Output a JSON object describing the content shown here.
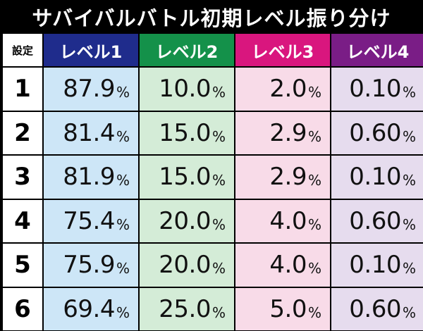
{
  "title": "サバイバルバトル初期レベル振り分け",
  "header": {
    "setting_label": "設定",
    "levels": [
      "レベル1",
      "レベル2",
      "レベル3",
      "レベル4"
    ],
    "level_colors": [
      "#1f2c8c",
      "#14914a",
      "#d9167e",
      "#7a1d86"
    ]
  },
  "unit": "%",
  "rows": [
    {
      "setting": "1",
      "values": [
        "87.9",
        "10.0",
        "2.0",
        "0.10"
      ]
    },
    {
      "setting": "2",
      "values": [
        "81.4",
        "15.0",
        "2.9",
        "0.60"
      ]
    },
    {
      "setting": "3",
      "values": [
        "81.9",
        "15.0",
        "2.9",
        "0.10"
      ]
    },
    {
      "setting": "4",
      "values": [
        "75.4",
        "20.0",
        "4.0",
        "0.60"
      ]
    },
    {
      "setting": "5",
      "values": [
        "75.9",
        "20.0",
        "4.0",
        "0.10"
      ]
    },
    {
      "setting": "6",
      "values": [
        "69.4",
        "25.0",
        "5.0",
        "0.60"
      ]
    }
  ]
}
